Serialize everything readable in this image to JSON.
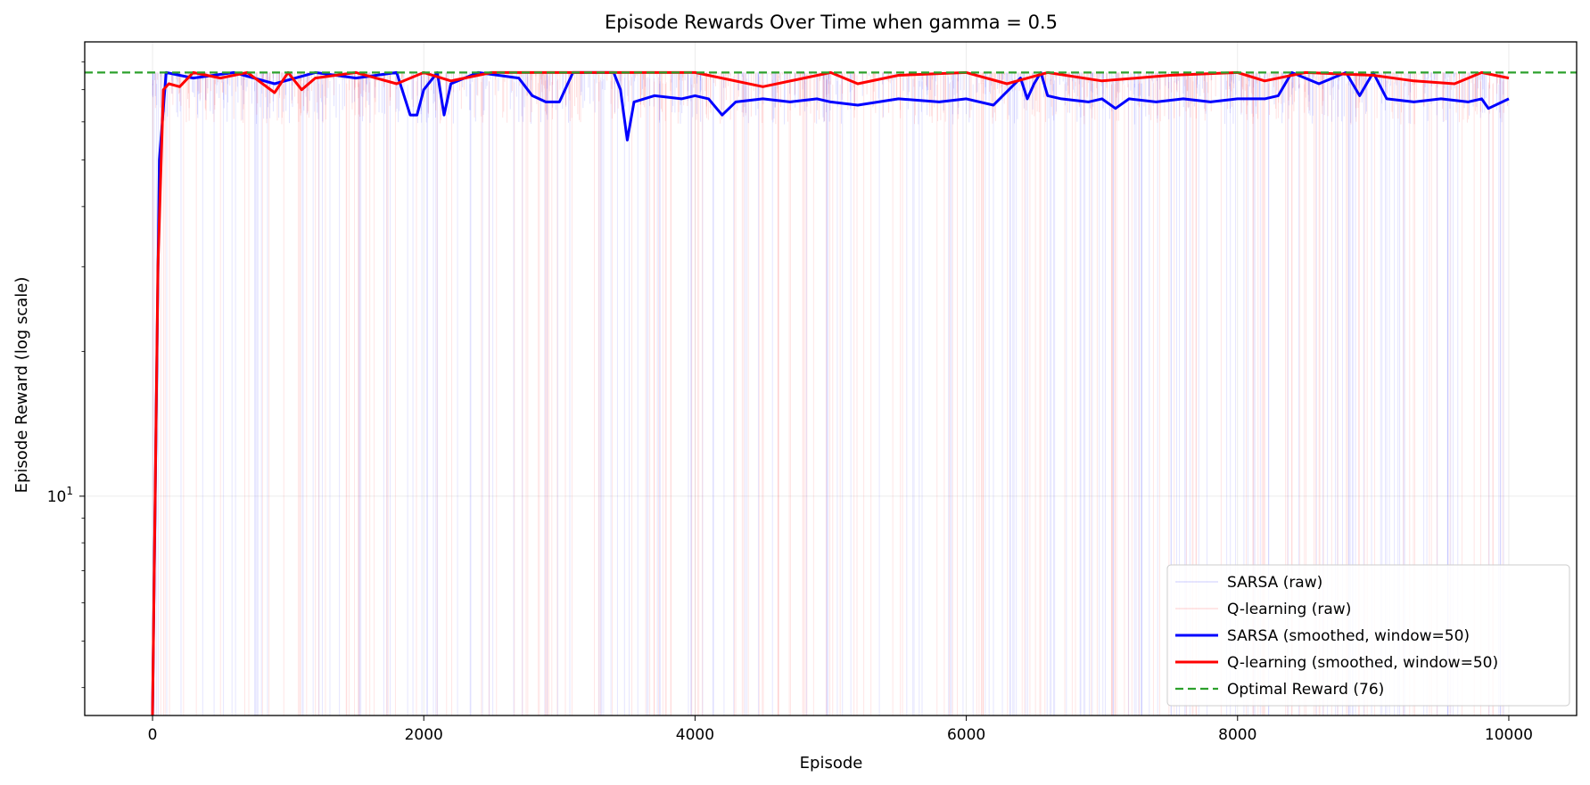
{
  "chart_data": {
    "type": "line",
    "title": "Episode Rewards Over Time when gamma = 0.5",
    "xlabel": "Episode",
    "ylabel": "Episode Reward (log scale)",
    "xlim": [
      -500,
      10500
    ],
    "ylim": [
      3.5,
      88
    ],
    "yscale": "log",
    "x_ticks": [
      0,
      2000,
      4000,
      6000,
      8000,
      10000
    ],
    "x_tick_labels": [
      "0",
      "2000",
      "4000",
      "6000",
      "8000",
      "10000"
    ],
    "y_ticks": [
      10
    ],
    "y_tick_base": "10",
    "y_tick_exp": "1",
    "grid": true,
    "legend_position": "lower-right",
    "optimal": {
      "name": "Optimal Reward (76)",
      "value": 76,
      "color": "#2ca02c"
    },
    "series": [
      {
        "name": "SARSA (raw)",
        "color": "#0000ff",
        "x": [
          0,
          2000,
          4000,
          6000,
          8000,
          10000
        ],
        "values": [
          3.5,
          76,
          76,
          76,
          76,
          76
        ]
      },
      {
        "name": "Q-learning (raw)",
        "color": "#ff0000",
        "x": [
          0,
          2000,
          4000,
          6000,
          8000,
          10000
        ],
        "values": [
          3.5,
          76,
          76,
          76,
          76,
          76
        ]
      },
      {
        "name": "SARSA (smoothed, window=50)",
        "color": "#0000ff",
        "x": [
          0,
          50,
          100,
          300,
          600,
          900,
          1200,
          1500,
          1800,
          1900,
          1950,
          2000,
          2100,
          2150,
          2200,
          2400,
          2700,
          2800,
          2900,
          3000,
          3100,
          3200,
          3400,
          3450,
          3500,
          3550,
          3700,
          3900,
          4000,
          4100,
          4200,
          4300,
          4500,
          4700,
          4900,
          5000,
          5200,
          5500,
          5800,
          6000,
          6200,
          6400,
          6450,
          6500,
          6550,
          6600,
          6700,
          6900,
          7000,
          7100,
          7200,
          7400,
          7600,
          7800,
          8000,
          8200,
          8300,
          8400,
          8600,
          8800,
          8900,
          9000,
          9100,
          9300,
          9500,
          9700,
          9800,
          9850,
          10000
        ],
        "values": [
          3.5,
          50,
          76,
          74,
          76,
          72,
          76,
          74,
          76,
          62,
          62,
          70,
          76,
          62,
          72,
          76,
          74,
          68,
          66,
          66,
          76,
          76,
          76,
          70,
          55,
          66,
          68,
          67,
          68,
          67,
          62,
          66,
          67,
          66,
          67,
          66,
          65,
          67,
          66,
          67,
          65,
          74,
          67,
          72,
          76,
          68,
          67,
          66,
          67,
          64,
          67,
          66,
          67,
          66,
          67,
          67,
          68,
          76,
          72,
          76,
          68,
          76,
          67,
          66,
          67,
          66,
          67,
          64,
          67
        ]
      },
      {
        "name": "Q-learning (smoothed, window=50)",
        "color": "#ff0000",
        "x": [
          0,
          40,
          80,
          120,
          200,
          300,
          500,
          700,
          900,
          1000,
          1100,
          1200,
          1500,
          1800,
          2000,
          2200,
          2500,
          2800,
          3000,
          3500,
          4000,
          4500,
          5000,
          5200,
          5500,
          6000,
          6300,
          6600,
          7000,
          7500,
          8000,
          8200,
          8500,
          9000,
          9300,
          9600,
          9800,
          10000
        ],
        "values": [
          3.5,
          30,
          70,
          72,
          71,
          76,
          74,
          76,
          69,
          76,
          70,
          74,
          76,
          72,
          76,
          73,
          76,
          76,
          76,
          76,
          76,
          71,
          76,
          72,
          75,
          76,
          72,
          76,
          73,
          75,
          76,
          73,
          76,
          75,
          73,
          72,
          76,
          74
        ]
      }
    ]
  }
}
